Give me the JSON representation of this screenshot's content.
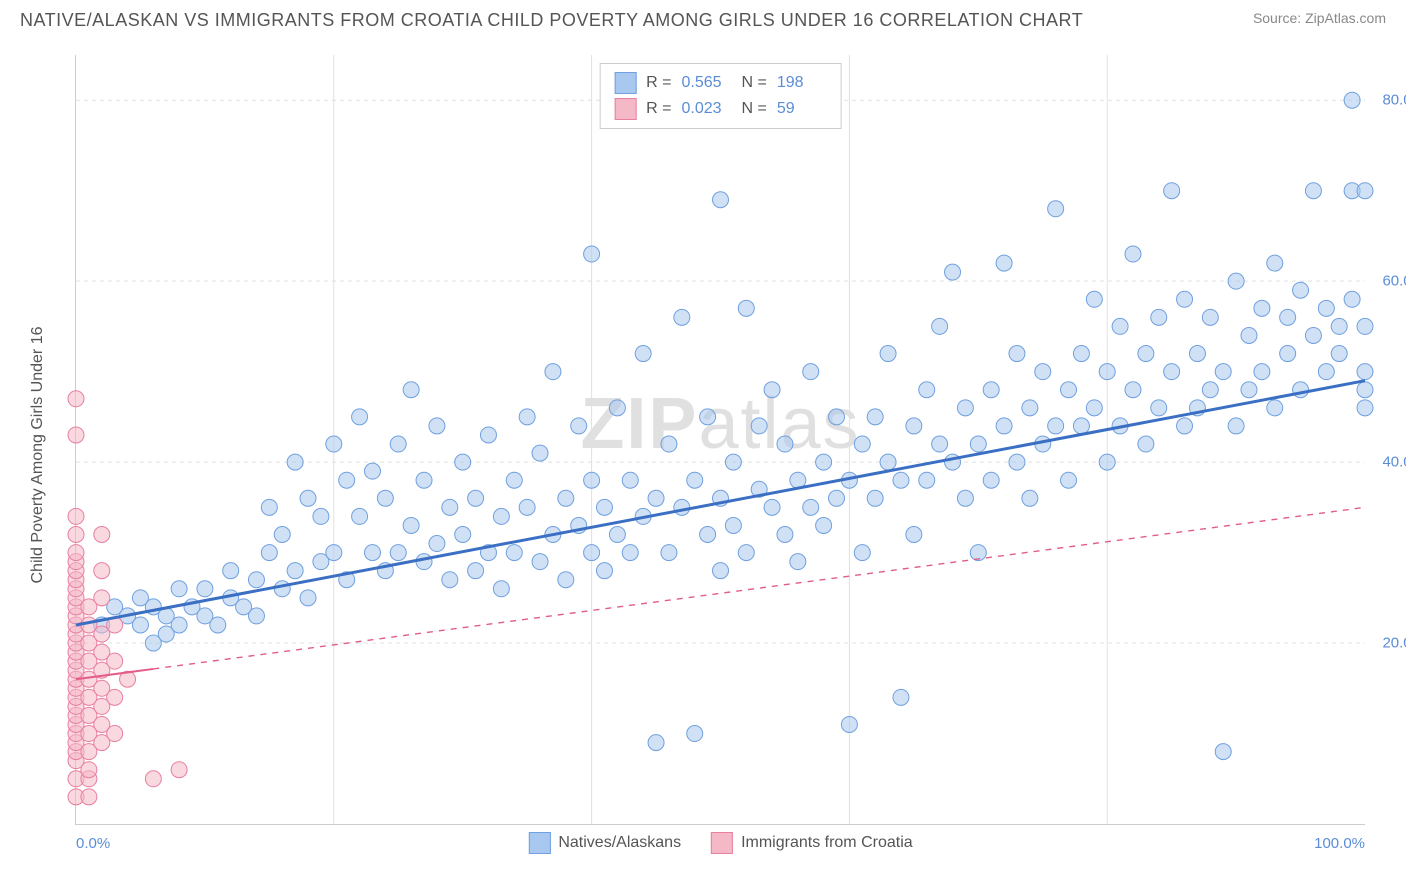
{
  "header": {
    "title": "NATIVE/ALASKAN VS IMMIGRANTS FROM CROATIA CHILD POVERTY AMONG GIRLS UNDER 16 CORRELATION CHART",
    "source_label": "Source:",
    "source_name": "ZipAtlas.com"
  },
  "chart": {
    "type": "scatter",
    "ylabel": "Child Poverty Among Girls Under 16",
    "watermark": "ZIPatlas",
    "xlim": [
      0,
      100
    ],
    "ylim": [
      0,
      85
    ],
    "xtick_min_label": "0.0%",
    "xtick_max_label": "100.0%",
    "yticks": [
      {
        "v": 20,
        "label": "20.0%"
      },
      {
        "v": 40,
        "label": "40.0%"
      },
      {
        "v": 60,
        "label": "60.0%"
      },
      {
        "v": 80,
        "label": "80.0%"
      }
    ],
    "xgrid": [
      20,
      40,
      60,
      80
    ],
    "grid_color": "#e0e0e0",
    "axis_color": "#cccccc",
    "tick_label_color": "#5b8dd6",
    "background_color": "#ffffff",
    "marker_radius": 8,
    "marker_opacity": 0.55,
    "series": [
      {
        "id": "natives",
        "label": "Natives/Alaskans",
        "color_fill": "#a9c8ef",
        "color_stroke": "#6fa0df",
        "R": "0.565",
        "N": "198",
        "trend": {
          "x1": 0,
          "y1": 22,
          "x2": 100,
          "y2": 49,
          "solid_until_x": 100,
          "stroke": "#3b6fc4",
          "width": 3
        },
        "points": [
          [
            2,
            22
          ],
          [
            3,
            24
          ],
          [
            4,
            23
          ],
          [
            5,
            22
          ],
          [
            5,
            25
          ],
          [
            6,
            20
          ],
          [
            6,
            24
          ],
          [
            7,
            21
          ],
          [
            7,
            23
          ],
          [
            8,
            22
          ],
          [
            8,
            26
          ],
          [
            9,
            24
          ],
          [
            10,
            23
          ],
          [
            10,
            26
          ],
          [
            11,
            22
          ],
          [
            12,
            25
          ],
          [
            12,
            28
          ],
          [
            13,
            24
          ],
          [
            14,
            23
          ],
          [
            14,
            27
          ],
          [
            15,
            30
          ],
          [
            15,
            35
          ],
          [
            16,
            26
          ],
          [
            16,
            32
          ],
          [
            17,
            28
          ],
          [
            17,
            40
          ],
          [
            18,
            25
          ],
          [
            18,
            36
          ],
          [
            19,
            29
          ],
          [
            19,
            34
          ],
          [
            20,
            30
          ],
          [
            20,
            42
          ],
          [
            21,
            27
          ],
          [
            21,
            38
          ],
          [
            22,
            34
          ],
          [
            22,
            45
          ],
          [
            23,
            30
          ],
          [
            23,
            39
          ],
          [
            24,
            28
          ],
          [
            24,
            36
          ],
          [
            25,
            30
          ],
          [
            25,
            42
          ],
          [
            26,
            33
          ],
          [
            26,
            48
          ],
          [
            27,
            29
          ],
          [
            27,
            38
          ],
          [
            28,
            31
          ],
          [
            28,
            44
          ],
          [
            29,
            35
          ],
          [
            29,
            27
          ],
          [
            30,
            32
          ],
          [
            30,
            40
          ],
          [
            31,
            36
          ],
          [
            31,
            28
          ],
          [
            32,
            30
          ],
          [
            32,
            43
          ],
          [
            33,
            34
          ],
          [
            33,
            26
          ],
          [
            34,
            38
          ],
          [
            34,
            30
          ],
          [
            35,
            35
          ],
          [
            35,
            45
          ],
          [
            36,
            29
          ],
          [
            36,
            41
          ],
          [
            37,
            32
          ],
          [
            37,
            50
          ],
          [
            38,
            36
          ],
          [
            38,
            27
          ],
          [
            39,
            33
          ],
          [
            39,
            44
          ],
          [
            40,
            30
          ],
          [
            40,
            38
          ],
          [
            40,
            63
          ],
          [
            41,
            35
          ],
          [
            41,
            28
          ],
          [
            42,
            32
          ],
          [
            42,
            46
          ],
          [
            43,
            38
          ],
          [
            43,
            30
          ],
          [
            44,
            34
          ],
          [
            44,
            52
          ],
          [
            45,
            36
          ],
          [
            45,
            9
          ],
          [
            46,
            30
          ],
          [
            46,
            42
          ],
          [
            47,
            35
          ],
          [
            47,
            56
          ],
          [
            48,
            38
          ],
          [
            48,
            10
          ],
          [
            49,
            32
          ],
          [
            49,
            45
          ],
          [
            50,
            36
          ],
          [
            50,
            28
          ],
          [
            50,
            69
          ],
          [
            51,
            40
          ],
          [
            51,
            33
          ],
          [
            52,
            57
          ],
          [
            52,
            30
          ],
          [
            53,
            37
          ],
          [
            53,
            44
          ],
          [
            54,
            35
          ],
          [
            54,
            48
          ],
          [
            55,
            32
          ],
          [
            55,
            42
          ],
          [
            56,
            38
          ],
          [
            56,
            29
          ],
          [
            57,
            35
          ],
          [
            57,
            50
          ],
          [
            58,
            40
          ],
          [
            58,
            33
          ],
          [
            59,
            36
          ],
          [
            59,
            45
          ],
          [
            60,
            38
          ],
          [
            60,
            11
          ],
          [
            61,
            42
          ],
          [
            61,
            30
          ],
          [
            62,
            45
          ],
          [
            62,
            36
          ],
          [
            63,
            40
          ],
          [
            63,
            52
          ],
          [
            64,
            38
          ],
          [
            64,
            14
          ],
          [
            65,
            44
          ],
          [
            65,
            32
          ],
          [
            66,
            48
          ],
          [
            66,
            38
          ],
          [
            67,
            42
          ],
          [
            67,
            55
          ],
          [
            68,
            40
          ],
          [
            68,
            61
          ],
          [
            69,
            36
          ],
          [
            69,
            46
          ],
          [
            70,
            42
          ],
          [
            70,
            30
          ],
          [
            71,
            48
          ],
          [
            71,
            38
          ],
          [
            72,
            44
          ],
          [
            72,
            62
          ],
          [
            73,
            40
          ],
          [
            73,
            52
          ],
          [
            74,
            46
          ],
          [
            74,
            36
          ],
          [
            75,
            50
          ],
          [
            75,
            42
          ],
          [
            76,
            44
          ],
          [
            76,
            68
          ],
          [
            77,
            48
          ],
          [
            77,
            38
          ],
          [
            78,
            52
          ],
          [
            78,
            44
          ],
          [
            79,
            46
          ],
          [
            79,
            58
          ],
          [
            80,
            50
          ],
          [
            80,
            40
          ],
          [
            81,
            44
          ],
          [
            81,
            55
          ],
          [
            82,
            48
          ],
          [
            82,
            63
          ],
          [
            83,
            52
          ],
          [
            83,
            42
          ],
          [
            84,
            56
          ],
          [
            84,
            46
          ],
          [
            85,
            50
          ],
          [
            85,
            70
          ],
          [
            86,
            44
          ],
          [
            86,
            58
          ],
          [
            87,
            52
          ],
          [
            87,
            46
          ],
          [
            88,
            56
          ],
          [
            88,
            48
          ],
          [
            89,
            50
          ],
          [
            89,
            8
          ],
          [
            90,
            44
          ],
          [
            90,
            60
          ],
          [
            91,
            54
          ],
          [
            91,
            48
          ],
          [
            92,
            57
          ],
          [
            92,
            50
          ],
          [
            93,
            46
          ],
          [
            93,
            62
          ],
          [
            94,
            52
          ],
          [
            94,
            56
          ],
          [
            95,
            59
          ],
          [
            95,
            48
          ],
          [
            96,
            54
          ],
          [
            96,
            70
          ],
          [
            97,
            50
          ],
          [
            97,
            57
          ],
          [
            98,
            55
          ],
          [
            98,
            52
          ],
          [
            99,
            58
          ],
          [
            99,
            70
          ],
          [
            99,
            80
          ],
          [
            100,
            55
          ],
          [
            100,
            50
          ],
          [
            100,
            48
          ],
          [
            100,
            70
          ],
          [
            100,
            46
          ]
        ]
      },
      {
        "id": "croatia",
        "label": "Immigrants from Croatia",
        "color_fill": "#f5b8c6",
        "color_stroke": "#e87fa0",
        "R": "0.023",
        "N": "59",
        "trend": {
          "x1": 0,
          "y1": 16,
          "x2": 100,
          "y2": 35,
          "solid_until_x": 6,
          "stroke": "#e25d8a",
          "width": 2
        },
        "points": [
          [
            0,
            3
          ],
          [
            0,
            5
          ],
          [
            0,
            7
          ],
          [
            0,
            8
          ],
          [
            0,
            9
          ],
          [
            0,
            10
          ],
          [
            0,
            11
          ],
          [
            0,
            12
          ],
          [
            0,
            13
          ],
          [
            0,
            14
          ],
          [
            0,
            15
          ],
          [
            0,
            16
          ],
          [
            0,
            17
          ],
          [
            0,
            18
          ],
          [
            0,
            19
          ],
          [
            0,
            20
          ],
          [
            0,
            21
          ],
          [
            0,
            22
          ],
          [
            0,
            23
          ],
          [
            0,
            24
          ],
          [
            0,
            25
          ],
          [
            0,
            26
          ],
          [
            0,
            27
          ],
          [
            0,
            28
          ],
          [
            0,
            29
          ],
          [
            0,
            30
          ],
          [
            0,
            32
          ],
          [
            0,
            34
          ],
          [
            0,
            43
          ],
          [
            0,
            47
          ],
          [
            1,
            5
          ],
          [
            1,
            8
          ],
          [
            1,
            10
          ],
          [
            1,
            12
          ],
          [
            1,
            14
          ],
          [
            1,
            16
          ],
          [
            1,
            18
          ],
          [
            1,
            20
          ],
          [
            1,
            22
          ],
          [
            1,
            24
          ],
          [
            1,
            3
          ],
          [
            1,
            6
          ],
          [
            2,
            9
          ],
          [
            2,
            11
          ],
          [
            2,
            13
          ],
          [
            2,
            15
          ],
          [
            2,
            17
          ],
          [
            2,
            19
          ],
          [
            2,
            21
          ],
          [
            2,
            25
          ],
          [
            2,
            28
          ],
          [
            2,
            32
          ],
          [
            3,
            10
          ],
          [
            3,
            14
          ],
          [
            3,
            18
          ],
          [
            3,
            22
          ],
          [
            4,
            16
          ],
          [
            6,
            5
          ],
          [
            8,
            6
          ]
        ]
      }
    ],
    "legend_top": {
      "R_label": "R =",
      "N_label": "N ="
    },
    "legend_bottom_labels": [
      "Natives/Alaskans",
      "Immigrants from Croatia"
    ]
  }
}
